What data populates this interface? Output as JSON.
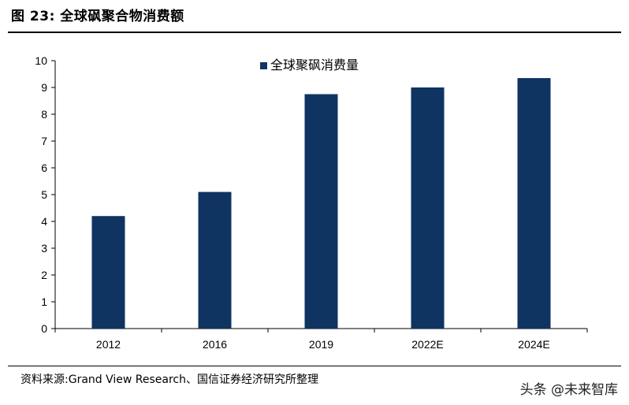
{
  "figure": {
    "title": "图 23: 全球砜聚合物消费额",
    "source": "资料来源:Grand View Research、国信证券经济研究所整理",
    "watermark": "头条 @未来智库"
  },
  "colors": {
    "bar": "#0f3461",
    "axis": "#000000"
  },
  "chart_data": {
    "type": "bar",
    "title": "",
    "xlabel": "",
    "ylabel": "",
    "categories": [
      "2012",
      "2016",
      "2019",
      "2022E",
      "2024E"
    ],
    "series": [
      {
        "name": "全球聚砜消费量",
        "values": [
          4.2,
          5.1,
          8.75,
          9.0,
          9.35
        ]
      }
    ],
    "ylim": [
      0,
      10
    ],
    "yticks": [
      0,
      1,
      2,
      3,
      4,
      5,
      6,
      7,
      8,
      9,
      10
    ],
    "grid": false,
    "legend": "top-center"
  }
}
